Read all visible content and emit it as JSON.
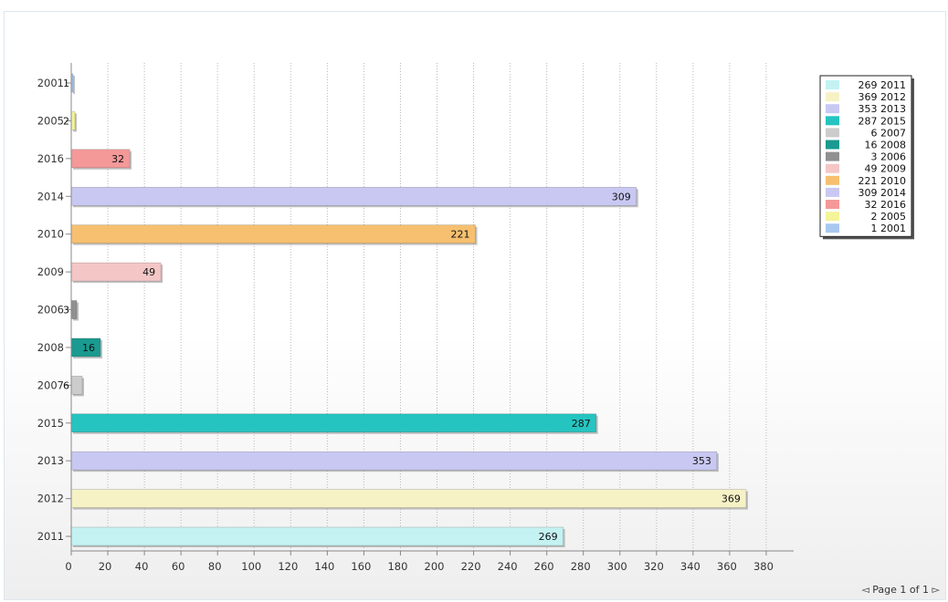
{
  "chart_data": {
    "type": "bar",
    "orientation": "horizontal",
    "categories": [
      "2001",
      "2005",
      "2016",
      "2014",
      "2010",
      "2009",
      "2006",
      "2008",
      "2007",
      "2015",
      "2013",
      "2012",
      "2011"
    ],
    "values": [
      1,
      2,
      32,
      309,
      221,
      49,
      3,
      16,
      6,
      287,
      353,
      369,
      269
    ],
    "colors": [
      "#a8c8f0",
      "#f4f49a",
      "#f49898",
      "#c8c8f2",
      "#f6c070",
      "#f4c6c6",
      "#909090",
      "#1a9a90",
      "#cccccc",
      "#26c4c0",
      "#c8c8f2",
      "#f6f2c6",
      "#c4f2f2"
    ],
    "xlim": [
      0,
      395
    ],
    "xticks": [
      0,
      20,
      40,
      60,
      80,
      100,
      120,
      140,
      160,
      180,
      200,
      220,
      240,
      260,
      280,
      300,
      320,
      340,
      360,
      380
    ],
    "grid": "vertical-dotted",
    "legend_position": "top-right",
    "legend": [
      {
        "label": "269 2011",
        "color": "#c4f2f2"
      },
      {
        "label": "369 2012",
        "color": "#f6f2c6"
      },
      {
        "label": "353 2013",
        "color": "#c8c8f2"
      },
      {
        "label": "287 2015",
        "color": "#26c4c0"
      },
      {
        "label": "6 2007",
        "color": "#cccccc"
      },
      {
        "label": "16 2008",
        "color": "#1a9a90"
      },
      {
        "label": "3 2006",
        "color": "#909090"
      },
      {
        "label": "49 2009",
        "color": "#f4c6c6"
      },
      {
        "label": "221 2010",
        "color": "#f6c070"
      },
      {
        "label": "309 2014",
        "color": "#c8c8f2"
      },
      {
        "label": "32 2016",
        "color": "#f49898"
      },
      {
        "label": "2 2005",
        "color": "#f4f49a"
      },
      {
        "label": "1 2001",
        "color": "#a8c8f0"
      }
    ]
  },
  "pager": {
    "prev_symbol": "◅",
    "text": "Page 1 of 1",
    "next_symbol": "▻"
  }
}
